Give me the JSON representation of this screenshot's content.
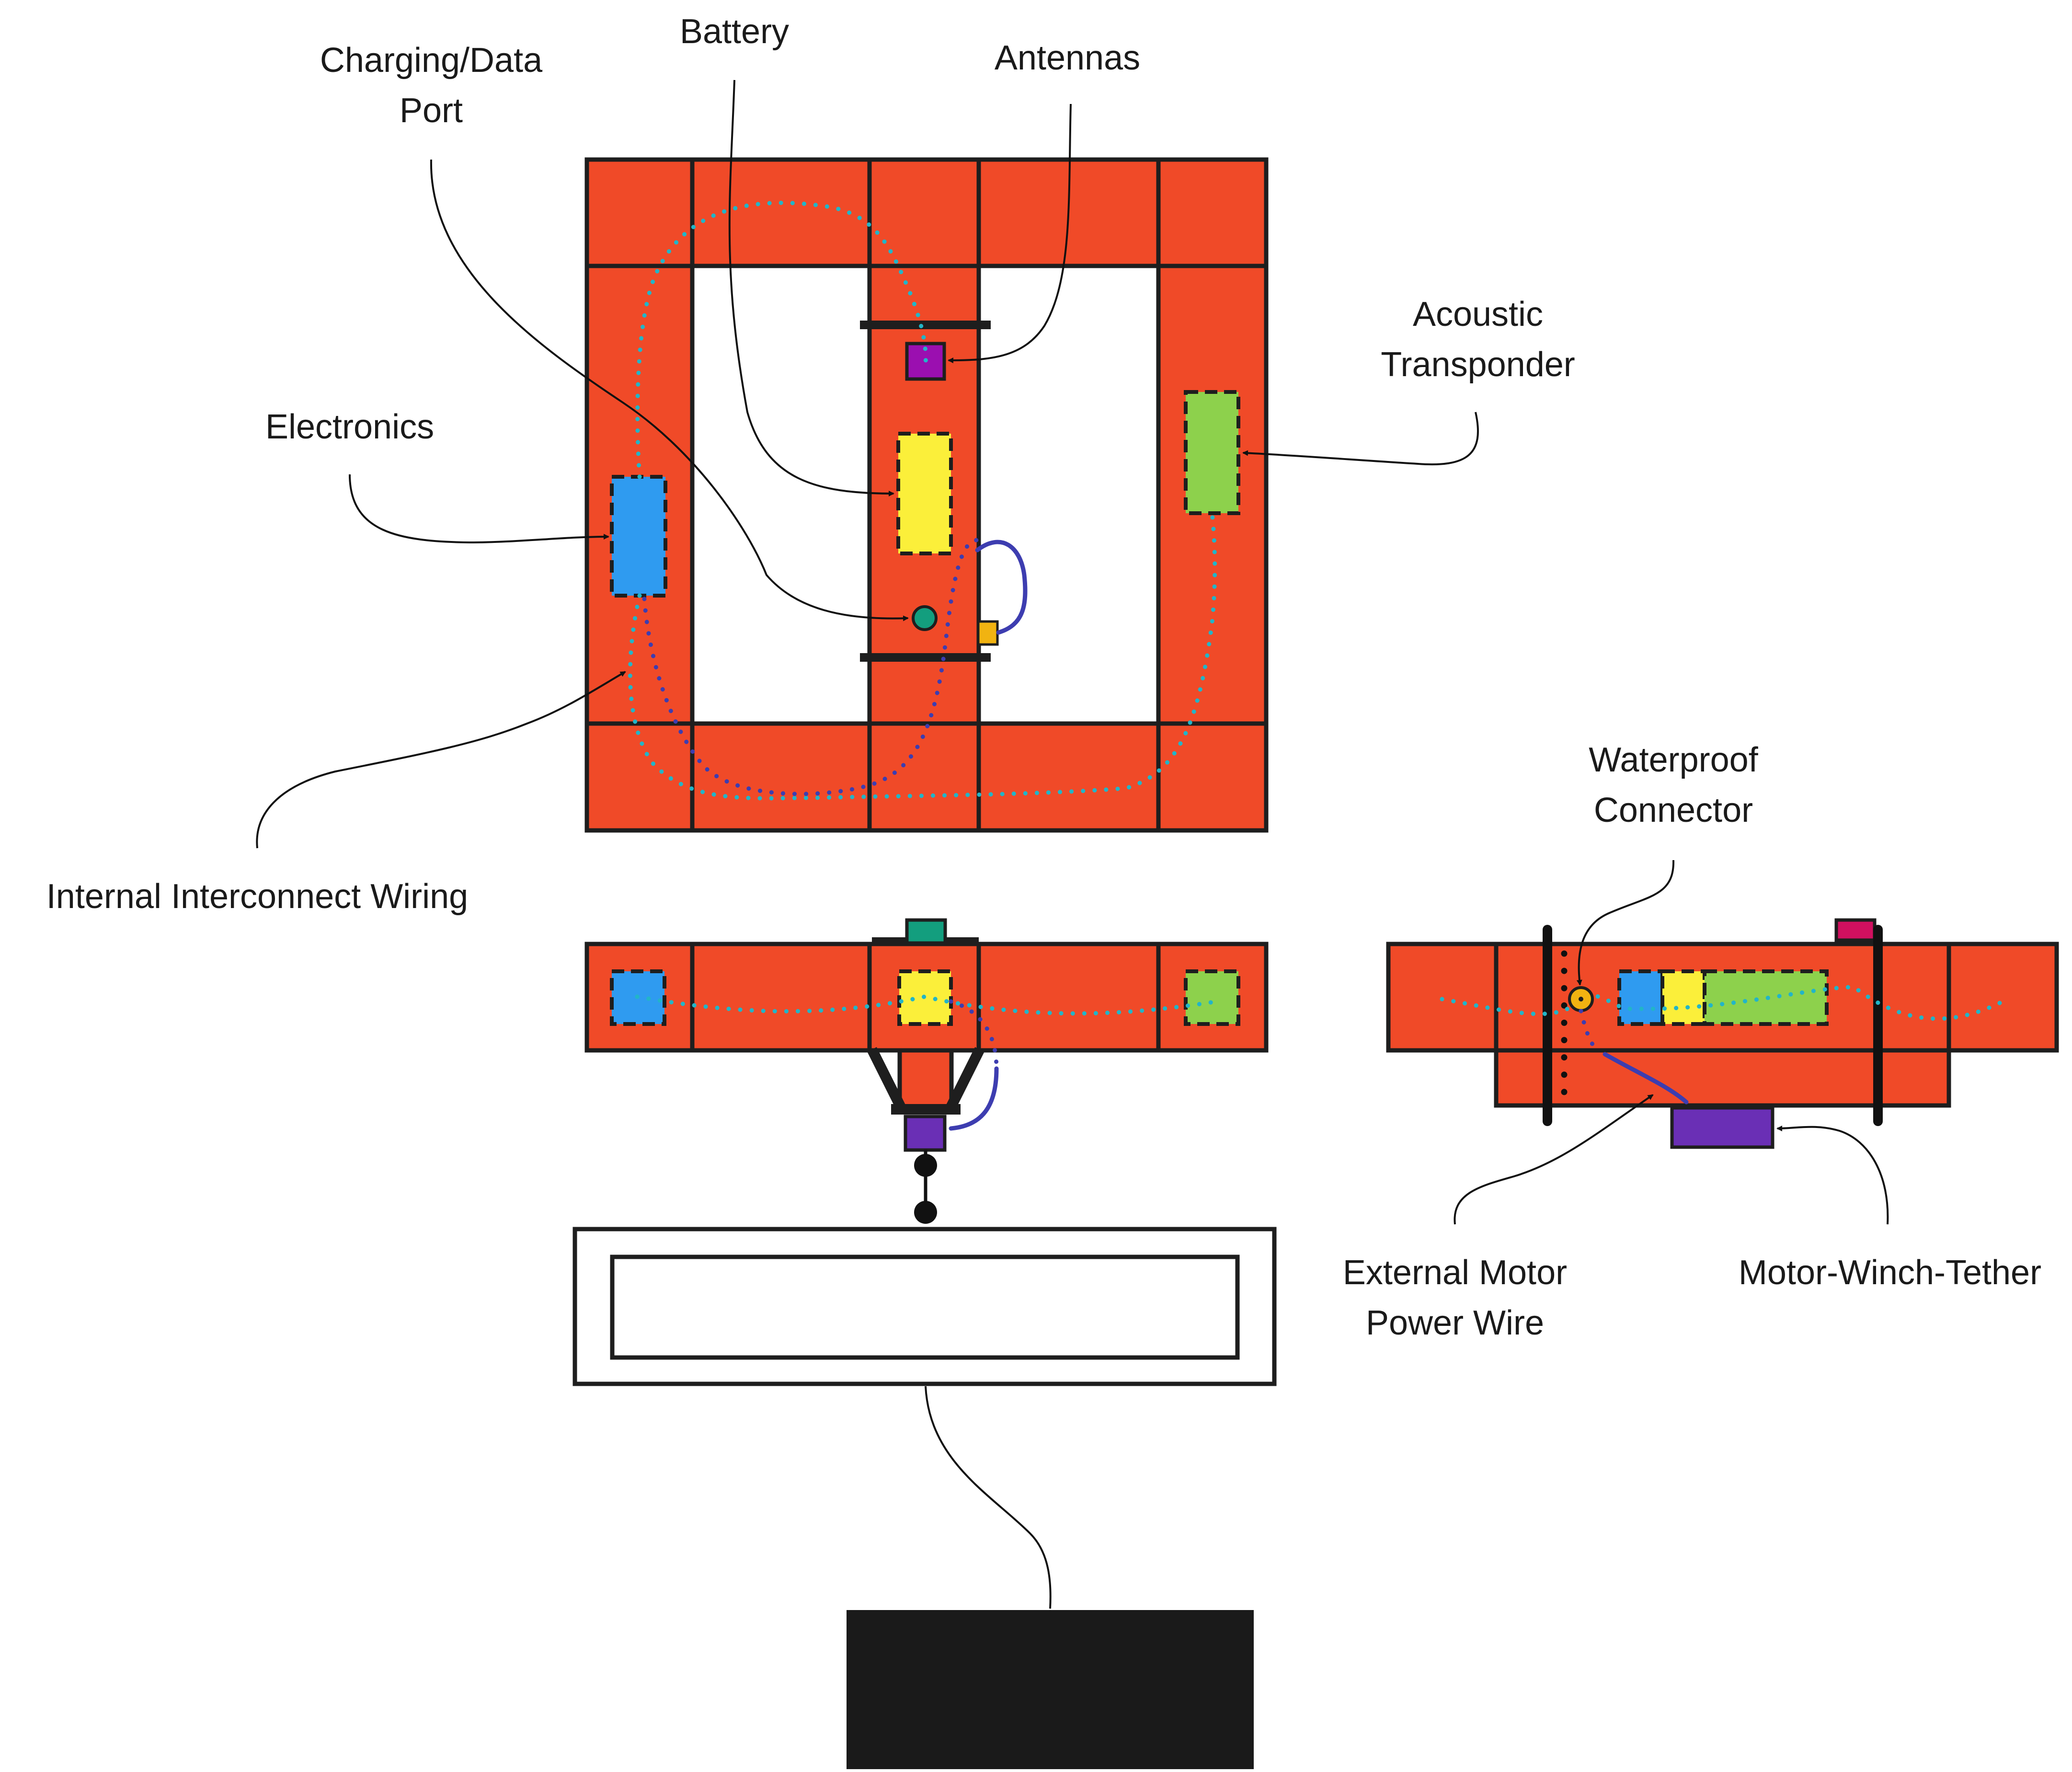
{
  "labels": {
    "battery": "Battery",
    "charging_port_line1": "Charging/Data",
    "charging_port_line2": "Port",
    "antennas": "Antennas",
    "acoustic_line1": "Acoustic",
    "acoustic_line2": "Transponder",
    "electronics": "Electronics",
    "internal_wiring": "Internal Interconnect Wiring",
    "waterproof_line1": "Waterproof",
    "waterproof_line2": "Connector",
    "motor_power_line1": "External Motor",
    "motor_power_line2": "Power Wire",
    "motor_winch": "Motor-Winch-Tether"
  },
  "colors": {
    "frame": "#f04a28",
    "outline": "#1e1e1e",
    "electronics": "#2f9bf0",
    "battery": "#fbef3a",
    "acoustic": "#8dd14c",
    "antenna": "#9b0fb0",
    "charging_port": "#139e7e",
    "small_connector": "#f1b311",
    "motor": "#6a2fb5",
    "interconnect_wiring": "#22b5c8",
    "motor_power_wire": "#3d3db0",
    "top_connector_right": "#d0105f",
    "ballast": "#1a1a1a"
  }
}
